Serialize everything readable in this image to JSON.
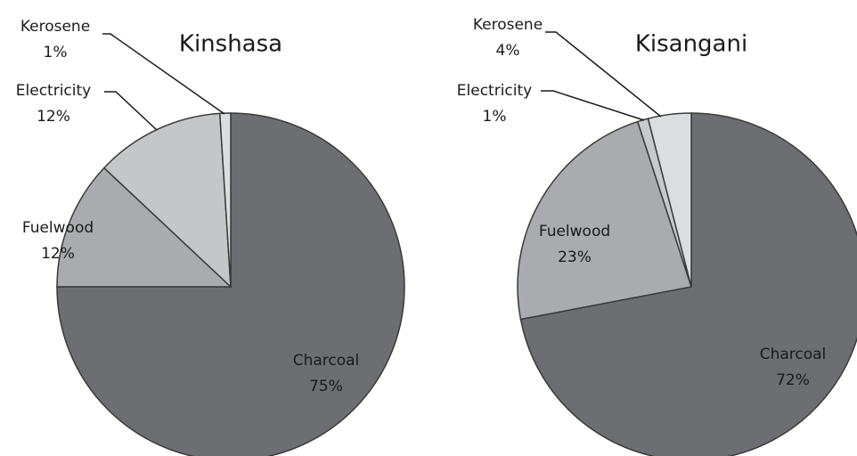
{
  "chart_data": [
    {
      "type": "pie",
      "title": "Kinshasa",
      "categories": [
        "Charcoal",
        "Fuelwood",
        "Electricity",
        "Kerosene"
      ],
      "values": [
        75,
        12,
        12,
        1
      ],
      "value_labels": [
        "75%",
        "12%",
        "12%",
        "1%"
      ],
      "colors": [
        "#6d6e71",
        "#a9abae",
        "#c5c6c8",
        "#dcdddf"
      ]
    },
    {
      "type": "pie",
      "title": "Kisangani",
      "categories": [
        "Charcoal",
        "Fuelwood",
        "Electricity",
        "Kerosene"
      ],
      "values": [
        72,
        23,
        1,
        4
      ],
      "value_labels": [
        "72%",
        "23%",
        "1%",
        "4%"
      ],
      "colors": [
        "#6d6e71",
        "#a9abae",
        "#c8c9cb",
        "#dcdddf"
      ]
    }
  ]
}
